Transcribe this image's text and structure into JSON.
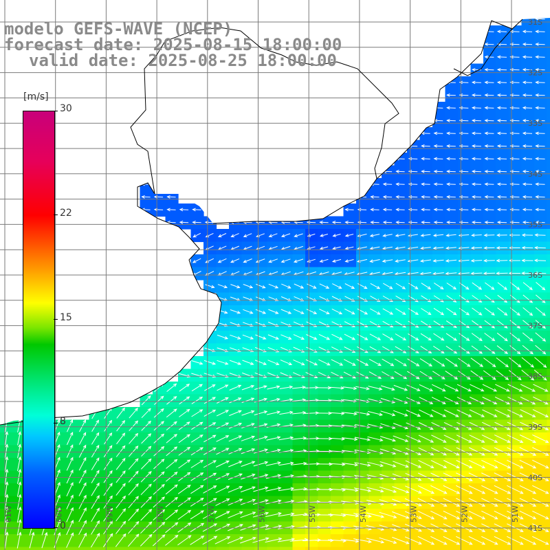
{
  "title": {
    "line1": "modelo GEFS-WAVE (NCEP)",
    "line2": "forecast date: 2025-08-15 18:00:00",
    "line3": "valid date: 2025-08-25 18:00:00"
  },
  "colorbar": {
    "unit": "[m/s]",
    "min": 0,
    "max": 30,
    "ticks": [
      "30",
      "22",
      "15",
      "8",
      "0"
    ]
  },
  "map": {
    "lon_range": [
      -61,
      -50
    ],
    "lat_range": [
      -42,
      -31
    ],
    "lon_labels": [
      "61W",
      "60W",
      "59W",
      "58W",
      "57W",
      "56W",
      "55W",
      "54W",
      "53W",
      "52W",
      "51W"
    ],
    "lat_labels": [
      "31S",
      "32S",
      "33S",
      "34S",
      "35S",
      "36S",
      "37S",
      "38S",
      "39S",
      "40S",
      "41S"
    ],
    "colors": {
      "land": "#ffffff",
      "grid": "#7a7a7a",
      "coast": "#000000",
      "arrow": "#ffffff"
    },
    "gridlines": true,
    "field": "wind speed and direction"
  }
}
